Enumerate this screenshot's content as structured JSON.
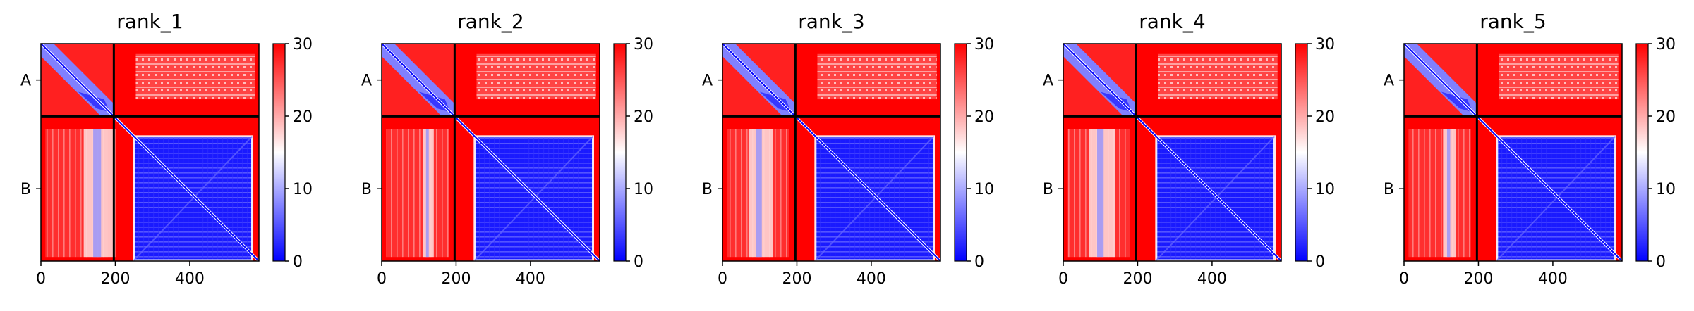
{
  "chart_data": [
    {
      "type": "heatmap",
      "title": "rank_1",
      "x_ticks": [
        0,
        200,
        400
      ],
      "y_tick_labels": [
        "A",
        "B"
      ],
      "chain_lengths": [
        196,
        390
      ],
      "xlim": [
        0,
        586
      ],
      "colorbar": {
        "range": [
          0,
          30
        ],
        "ticks": [
          0,
          10,
          20,
          30
        ],
        "colors": [
          "#0000ff",
          "#ffffff",
          "#ff0000"
        ]
      },
      "low_error_band": {
        "start": 115,
        "end": 200
      }
    },
    {
      "type": "heatmap",
      "title": "rank_2",
      "x_ticks": [
        0,
        200,
        400
      ],
      "y_tick_labels": [
        "A",
        "B"
      ],
      "chain_lengths": [
        196,
        390
      ],
      "xlim": [
        0,
        586
      ],
      "colorbar": {
        "range": [
          0,
          30
        ],
        "ticks": [
          0,
          10,
          20,
          30
        ],
        "colors": [
          "#0000ff",
          "#ffffff",
          "#ff0000"
        ]
      },
      "low_error_band": {
        "start": 110,
        "end": 140
      }
    },
    {
      "type": "heatmap",
      "title": "rank_3",
      "x_ticks": [
        0,
        200,
        400
      ],
      "y_tick_labels": [
        "A",
        "B"
      ],
      "chain_lengths": [
        196,
        390
      ],
      "xlim": [
        0,
        586
      ],
      "colorbar": {
        "range": [
          0,
          30
        ],
        "ticks": [
          0,
          10,
          20,
          30
        ],
        "colors": [
          "#0000ff",
          "#ffffff",
          "#ff0000"
        ]
      },
      "low_error_band": {
        "start": 70,
        "end": 135
      }
    },
    {
      "type": "heatmap",
      "title": "rank_4",
      "x_ticks": [
        0,
        200,
        400
      ],
      "y_tick_labels": [
        "A",
        "B"
      ],
      "chain_lengths": [
        196,
        390
      ],
      "xlim": [
        0,
        586
      ],
      "colorbar": {
        "range": [
          0,
          30
        ],
        "ticks": [
          0,
          10,
          20,
          30
        ],
        "colors": [
          "#0000ff",
          "#ffffff",
          "#ff0000"
        ]
      },
      "low_error_band": {
        "start": 70,
        "end": 140
      }
    },
    {
      "type": "heatmap",
      "title": "rank_5",
      "x_ticks": [
        0,
        200,
        400
      ],
      "y_tick_labels": [
        "A",
        "B"
      ],
      "chain_lengths": [
        196,
        390
      ],
      "xlim": [
        0,
        586
      ],
      "colorbar": {
        "range": [
          0,
          30
        ],
        "ticks": [
          0,
          10,
          20,
          30
        ],
        "colors": [
          "#0000ff",
          "#ffffff",
          "#ff0000"
        ]
      },
      "low_error_band": {
        "start": 105,
        "end": 140
      }
    }
  ]
}
